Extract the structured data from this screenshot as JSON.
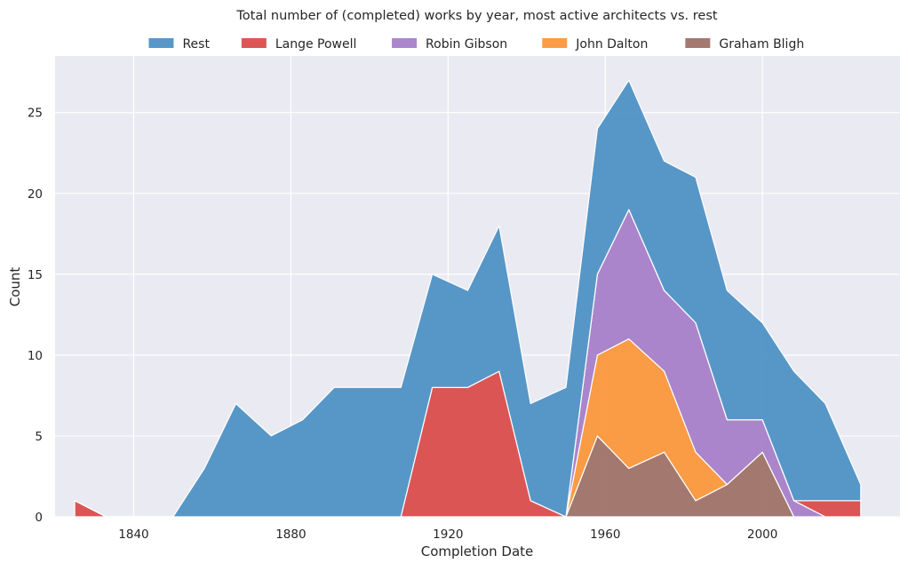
{
  "chart_data": {
    "type": "area",
    "stacked": true,
    "title": "Total number of (completed) works by year, most active architects vs. rest",
    "xlabel": "Completion Date",
    "ylabel": "Count",
    "xlim": [
      1820,
      2035
    ],
    "ylim": [
      0,
      28.5
    ],
    "xticks": [
      1840,
      1880,
      1920,
      1960,
      2000
    ],
    "yticks": [
      0,
      5,
      10,
      15,
      20,
      25
    ],
    "grid": true,
    "legend_position": "top",
    "background_color": "#eaeaf2",
    "legend_order": [
      "Rest",
      "Lange Powell",
      "Robin Gibson",
      "John Dalton",
      "Graham Bligh"
    ],
    "x": [
      1825,
      1833,
      1841,
      1850,
      1858,
      1866,
      1875,
      1883,
      1891,
      1900,
      1908,
      1916,
      1925,
      1933,
      1941,
      1950,
      1958,
      1966,
      1975,
      1983,
      1991,
      2000,
      2008,
      2016,
      2025
    ],
    "series": [
      {
        "name": "Graham Bligh",
        "color": "#9c6e63",
        "values": [
          0,
          0,
          0,
          0,
          0,
          0,
          0,
          0,
          0,
          0,
          0,
          0,
          0,
          0,
          0,
          0,
          5,
          3,
          4,
          1,
          2,
          4,
          0,
          0,
          0
        ]
      },
      {
        "name": "John Dalton",
        "color": "#fb9436",
        "values": [
          0,
          0,
          0,
          0,
          0,
          0,
          0,
          0,
          0,
          0,
          0,
          0,
          0,
          0,
          0,
          0,
          5,
          8,
          5,
          3,
          0,
          0,
          0,
          0,
          0
        ]
      },
      {
        "name": "Robin Gibson",
        "color": "#a57cc8",
        "values": [
          0,
          0,
          0,
          0,
          0,
          0,
          0,
          0,
          0,
          0,
          0,
          0,
          0,
          0,
          0,
          0,
          5,
          8,
          5,
          8,
          4,
          2,
          1,
          0,
          0
        ]
      },
      {
        "name": "Lange Powell",
        "color": "#d94848",
        "values": [
          1,
          0,
          0,
          0,
          0,
          0,
          0,
          0,
          0,
          0,
          0,
          8,
          8,
          9,
          1,
          0,
          0,
          0,
          0,
          0,
          0,
          0,
          0,
          1,
          1
        ]
      },
      {
        "name": "Rest",
        "color": "#4a8fc3",
        "values": [
          0,
          0,
          0,
          0,
          3,
          7,
          5,
          6,
          8,
          8,
          8,
          7,
          6,
          9,
          6,
          8,
          9,
          8,
          8,
          9,
          8,
          6,
          8,
          6,
          1
        ]
      }
    ]
  }
}
